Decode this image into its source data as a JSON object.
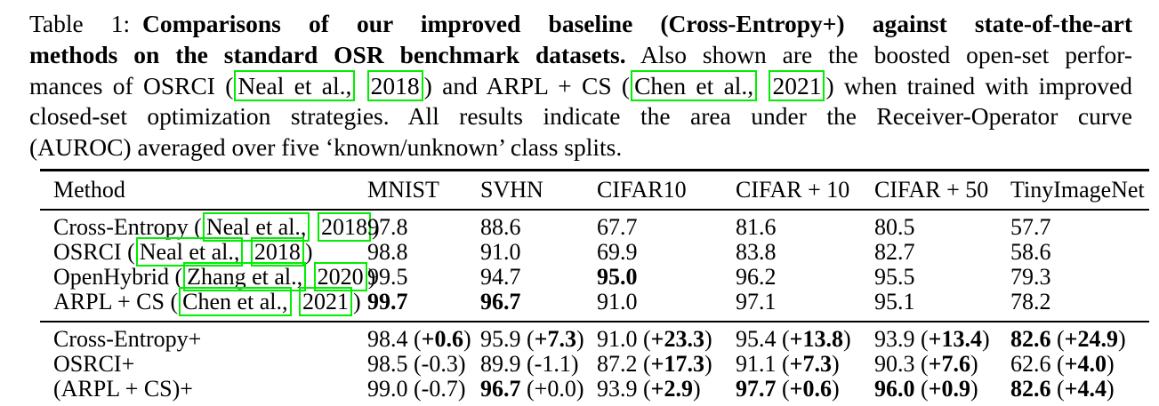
{
  "colors": {
    "citation_box": "#00ee00",
    "text": "#000000",
    "background": "#ffffff",
    "rule": "#000000"
  },
  "caption": {
    "lines": [
      {
        "justify": true,
        "segments": [
          {
            "text": "Table 1: "
          },
          {
            "text": "Comparisons of our improved baseline (Cross-Entropy+) against state-of-the-art",
            "bold": true
          }
        ]
      },
      {
        "justify": true,
        "segments": [
          {
            "text": "methods on the standard OSR benchmark datasets.",
            "bold": true
          },
          {
            "text": " Also shown are the boosted open-set perfor-"
          }
        ]
      },
      {
        "justify": true,
        "segments": [
          {
            "text": "mances of OSRCI ("
          },
          {
            "text": "Neal et al.,",
            "cite": true
          },
          {
            "text": " "
          },
          {
            "text": "2018",
            "cite": true
          },
          {
            "text": ") and ARPL + CS ("
          },
          {
            "text": "Chen et al.,",
            "cite": true
          },
          {
            "text": " "
          },
          {
            "text": "2021",
            "cite": true
          },
          {
            "text": ") when trained with improved"
          }
        ]
      },
      {
        "justify": true,
        "segments": [
          {
            "text": "closed-set optimization strategies. All results indicate the area under the Receiver-Operator curve"
          }
        ]
      },
      {
        "justify": false,
        "segments": [
          {
            "text": "(AUROC) averaged over five ‘known/unknown’ class splits."
          }
        ]
      }
    ]
  },
  "table": {
    "columns": [
      "Method",
      "MNIST",
      "SVHN",
      "CIFAR10",
      "CIFAR + 10",
      "CIFAR + 50",
      "TinyImageNet"
    ],
    "groups": [
      {
        "rows": [
          {
            "method": {
              "segments": [
                {
                  "text": "Cross-Entropy ("
                },
                {
                  "text": "Neal et al.,",
                  "cite": true
                },
                {
                  "text": " "
                },
                {
                  "text": "2018",
                  "cite": true
                },
                {
                  "text": ")"
                }
              ]
            },
            "cells": [
              {
                "value": "97.8"
              },
              {
                "value": "88.6"
              },
              {
                "value": "67.7"
              },
              {
                "value": "81.6"
              },
              {
                "value": "80.5"
              },
              {
                "value": "57.7"
              }
            ]
          },
          {
            "method": {
              "segments": [
                {
                  "text": "OSRCI ("
                },
                {
                  "text": "Neal et al.,",
                  "cite": true
                },
                {
                  "text": " "
                },
                {
                  "text": "2018",
                  "cite": true
                },
                {
                  "text": ")"
                }
              ]
            },
            "cells": [
              {
                "value": "98.8"
              },
              {
                "value": "91.0"
              },
              {
                "value": "69.9"
              },
              {
                "value": "83.8"
              },
              {
                "value": "82.7"
              },
              {
                "value": "58.6"
              }
            ]
          },
          {
            "method": {
              "segments": [
                {
                  "text": "OpenHybrid ("
                },
                {
                  "text": "Zhang et al.,",
                  "cite": true
                },
                {
                  "text": " "
                },
                {
                  "text": "2020",
                  "cite": true
                },
                {
                  "text": ")"
                }
              ]
            },
            "cells": [
              {
                "value": "99.5"
              },
              {
                "value": "94.7"
              },
              {
                "value": "95.0",
                "bold": true
              },
              {
                "value": "96.2"
              },
              {
                "value": "95.5"
              },
              {
                "value": "79.3"
              }
            ]
          },
          {
            "method": {
              "segments": [
                {
                  "text": "ARPL + CS ("
                },
                {
                  "text": "Chen et al.,",
                  "cite": true
                },
                {
                  "text": " "
                },
                {
                  "text": "2021",
                  "cite": true
                },
                {
                  "text": ")"
                }
              ]
            },
            "cells": [
              {
                "value": "99.7",
                "bold": true
              },
              {
                "value": "96.7",
                "bold": true
              },
              {
                "value": "91.0"
              },
              {
                "value": "97.1"
              },
              {
                "value": "95.1"
              },
              {
                "value": "78.2"
              }
            ]
          }
        ]
      },
      {
        "rows": [
          {
            "method": {
              "segments": [
                {
                  "text": "Cross-Entropy+"
                }
              ]
            },
            "cells": [
              {
                "value": "98.4",
                "delta": "+0.6",
                "delta_bold": true
              },
              {
                "value": "95.9",
                "delta": "+7.3",
                "delta_bold": true
              },
              {
                "value": "91.0",
                "delta": "+23.3",
                "delta_bold": true
              },
              {
                "value": "95.4",
                "delta": "+13.8",
                "delta_bold": true
              },
              {
                "value": "93.9",
                "delta": "+13.4",
                "delta_bold": true
              },
              {
                "value": "82.6",
                "bold": true,
                "delta": "+24.9",
                "delta_bold": true
              }
            ]
          },
          {
            "method": {
              "segments": [
                {
                  "text": "OSRCI+"
                }
              ]
            },
            "cells": [
              {
                "value": "98.5",
                "delta": "-0.3"
              },
              {
                "value": "89.9",
                "delta": "-1.1"
              },
              {
                "value": "87.2",
                "delta": "+17.3",
                "delta_bold": true
              },
              {
                "value": "91.1",
                "delta": "+7.3",
                "delta_bold": true
              },
              {
                "value": "90.3",
                "delta": "+7.6",
                "delta_bold": true
              },
              {
                "value": "62.6",
                "delta": "+4.0",
                "delta_bold": true
              }
            ]
          },
          {
            "method": {
              "segments": [
                {
                  "text": "(ARPL + CS)+"
                }
              ]
            },
            "cells": [
              {
                "value": "99.0",
                "delta": "-0.7"
              },
              {
                "value": "96.7",
                "bold": true,
                "delta": "+0.0"
              },
              {
                "value": "93.9",
                "delta": "+2.9",
                "delta_bold": true
              },
              {
                "value": "97.7",
                "bold": true,
                "delta": "+0.6",
                "delta_bold": true
              },
              {
                "value": "96.0",
                "bold": true,
                "delta": "+0.9",
                "delta_bold": true
              },
              {
                "value": "82.6",
                "bold": true,
                "delta": "+4.4",
                "delta_bold": true
              }
            ]
          }
        ]
      }
    ]
  }
}
